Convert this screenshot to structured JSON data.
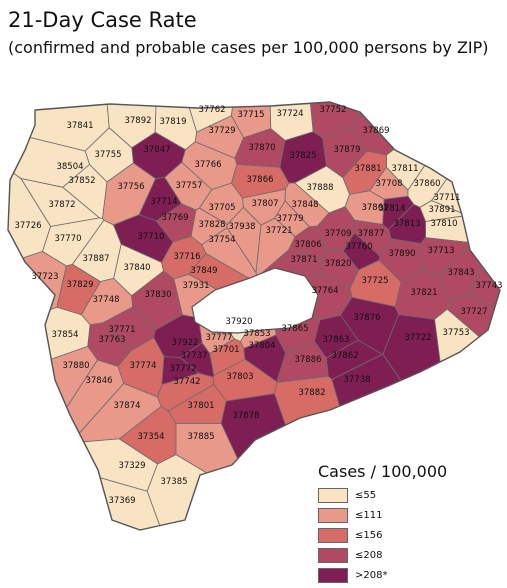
{
  "header": {
    "title": "21-Day Case Rate",
    "subtitle": "(confirmed and probable cases per 100,000 persons by ZIP)"
  },
  "legend": {
    "title": "Cases / 100,000",
    "items": [
      {
        "label": "≤55",
        "color": "#f8e3c2"
      },
      {
        "label": "≤111",
        "color": "#e8998a"
      },
      {
        "label": "≤156",
        "color": "#d76c66"
      },
      {
        "label": "≤208",
        "color": "#b04a62"
      },
      {
        "label": ">208*",
        "color": "#7e1e53"
      }
    ]
  },
  "zip_labels": [
    "37841",
    "37892",
    "37819",
    "37762",
    "37715",
    "37724",
    "37752",
    "37729",
    "37869",
    "37847",
    "37870",
    "37755",
    "38504",
    "37825",
    "37879",
    "37766",
    "37811",
    "37852",
    "37756",
    "37757",
    "37866",
    "37881",
    "37708",
    "37860",
    "37872",
    "37714",
    "37705",
    "37888",
    "37807",
    "37848",
    "37861",
    "37711",
    "37891",
    "37726",
    "37770",
    "37769",
    "37779",
    "37709",
    "37814",
    "37810",
    "37710",
    "37828",
    "37938",
    "37721",
    "37877",
    "37813",
    "37754",
    "37806",
    "37760",
    "37890",
    "37713",
    "37887",
    "37716",
    "37871",
    "37820",
    "37723",
    "37849",
    "37840",
    "37829",
    "37931",
    "37843",
    "37748",
    "37764",
    "37725",
    "37821",
    "37743",
    "37830",
    "37727",
    "37920",
    "37771",
    "37777",
    "37865",
    "37876",
    "37854",
    "37763",
    "37922",
    "37853",
    "37701",
    "37804",
    "37863",
    "37722",
    "37753",
    "37737",
    "37886",
    "37862",
    "37880",
    "37774",
    "37772",
    "37846",
    "37742",
    "37803",
    "37882",
    "37738",
    "37874",
    "37801",
    "37878",
    "37354",
    "37885",
    "37329",
    "37385",
    "37369"
  ]
}
